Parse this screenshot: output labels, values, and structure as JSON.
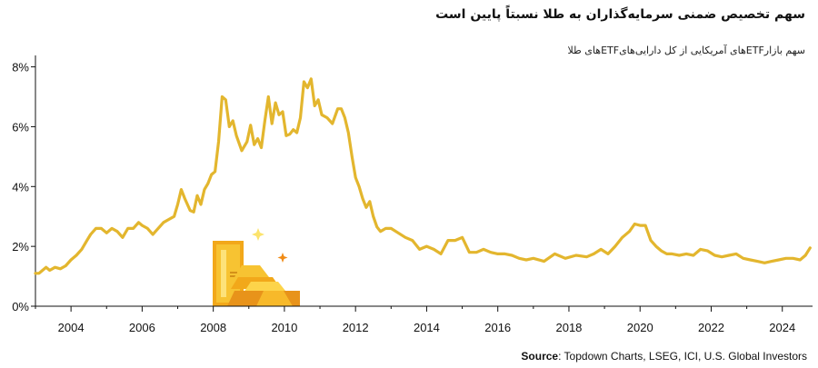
{
  "chart_data": {
    "type": "line",
    "title": "سهم تخصیص ضمنی سرمایه‌گذاران به طلا نسبتاً پایین است",
    "subtitle": "سهم بازارETFهای آمریکایی از کل دارایی‌هایETFهای طلا",
    "source_label": "Source",
    "source_text": ": Topdown Charts, LSEG, ICI, U.S. Global Investors",
    "xlim": [
      2003.0,
      2024.85
    ],
    "ylim": [
      0,
      8.2
    ],
    "x_ticks": [
      "2004",
      "2006",
      "2008",
      "2010",
      "2012",
      "2014",
      "2016",
      "2018",
      "2020",
      "2022",
      "2024"
    ],
    "y_ticks": [
      "0%",
      "2%",
      "4%",
      "6%",
      "8%"
    ],
    "line_color": "#E3B62E",
    "grid": false,
    "x": [
      2003.0,
      2003.1,
      2003.2,
      2003.3,
      2003.4,
      2003.55,
      2003.7,
      2003.85,
      2004.0,
      2004.15,
      2004.3,
      2004.45,
      2004.55,
      2004.7,
      2004.85,
      2005.0,
      2005.15,
      2005.3,
      2005.45,
      2005.6,
      2005.75,
      2005.9,
      2006.0,
      2006.15,
      2006.3,
      2006.45,
      2006.6,
      2006.75,
      2006.9,
      2007.0,
      2007.1,
      2007.2,
      2007.35,
      2007.45,
      2007.55,
      2007.65,
      2007.75,
      2007.85,
      2007.95,
      2008.05,
      2008.15,
      2008.25,
      2008.35,
      2008.45,
      2008.55,
      2008.65,
      2008.8,
      2008.95,
      2009.05,
      2009.15,
      2009.25,
      2009.35,
      2009.45,
      2009.55,
      2009.65,
      2009.75,
      2009.85,
      2009.95,
      2010.05,
      2010.15,
      2010.25,
      2010.35,
      2010.45,
      2010.55,
      2010.65,
      2010.75,
      2010.85,
      2010.95,
      2011.05,
      2011.2,
      2011.35,
      2011.5,
      2011.6,
      2011.7,
      2011.8,
      2011.9,
      2012.0,
      2012.1,
      2012.2,
      2012.3,
      2012.4,
      2012.5,
      2012.6,
      2012.7,
      2012.85,
      2013.0,
      2013.2,
      2013.4,
      2013.6,
      2013.8,
      2014.0,
      2014.2,
      2014.4,
      2014.6,
      2014.8,
      2015.0,
      2015.2,
      2015.4,
      2015.6,
      2015.8,
      2016.0,
      2016.2,
      2016.4,
      2016.6,
      2016.8,
      2017.0,
      2017.3,
      2017.6,
      2017.9,
      2018.2,
      2018.5,
      2018.7,
      2018.9,
      2019.1,
      2019.3,
      2019.5,
      2019.7,
      2019.85,
      2020.0,
      2020.15,
      2020.3,
      2020.45,
      2020.6,
      2020.75,
      2020.9,
      2021.1,
      2021.3,
      2021.5,
      2021.7,
      2021.9,
      2022.1,
      2022.3,
      2022.5,
      2022.7,
      2022.9,
      2023.1,
      2023.3,
      2023.5,
      2023.7,
      2023.9,
      2024.1,
      2024.3,
      2024.5,
      2024.65,
      2024.78
    ],
    "values": [
      1.1,
      1.1,
      1.2,
      1.3,
      1.2,
      1.3,
      1.25,
      1.35,
      1.55,
      1.7,
      1.9,
      2.2,
      2.4,
      2.6,
      2.6,
      2.45,
      2.6,
      2.5,
      2.3,
      2.6,
      2.6,
      2.8,
      2.7,
      2.6,
      2.4,
      2.6,
      2.8,
      2.9,
      3.0,
      3.4,
      3.9,
      3.6,
      3.2,
      3.15,
      3.7,
      3.4,
      3.9,
      4.1,
      4.4,
      4.5,
      5.5,
      7.0,
      6.9,
      6.0,
      6.2,
      5.7,
      5.2,
      5.5,
      6.05,
      5.4,
      5.6,
      5.3,
      6.2,
      7.0,
      6.1,
      6.8,
      6.4,
      6.5,
      5.7,
      5.75,
      5.9,
      5.8,
      6.3,
      7.5,
      7.3,
      7.6,
      6.7,
      6.9,
      6.4,
      6.3,
      6.1,
      6.6,
      6.6,
      6.3,
      5.8,
      5.0,
      4.3,
      4.0,
      3.6,
      3.3,
      3.5,
      3.0,
      2.65,
      2.5,
      2.6,
      2.6,
      2.45,
      2.3,
      2.2,
      1.9,
      2.0,
      1.9,
      1.75,
      2.2,
      2.2,
      2.3,
      1.8,
      1.8,
      1.9,
      1.8,
      1.75,
      1.75,
      1.7,
      1.6,
      1.55,
      1.6,
      1.5,
      1.75,
      1.6,
      1.7,
      1.65,
      1.75,
      1.9,
      1.75,
      2.0,
      2.3,
      2.5,
      2.75,
      2.7,
      2.7,
      2.2,
      2.0,
      1.85,
      1.75,
      1.75,
      1.7,
      1.75,
      1.7,
      1.9,
      1.85,
      1.7,
      1.65,
      1.7,
      1.75,
      1.6,
      1.55,
      1.5,
      1.45,
      1.5,
      1.55,
      1.6,
      1.6,
      1.55,
      1.7,
      1.95
    ]
  }
}
